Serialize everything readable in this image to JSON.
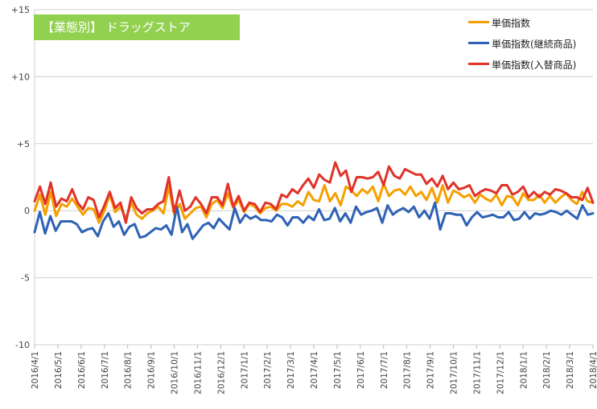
{
  "chart_data": {
    "type": "line",
    "title": "【業態別】 ドラッグストア",
    "ylim": [
      -10,
      15
    ],
    "yticks": [
      15,
      10,
      5,
      0,
      -5,
      -10
    ],
    "ytick_labels": [
      "+15",
      "+10",
      "+5",
      "0",
      "-5",
      "-10"
    ],
    "grid": true,
    "legend_position": "top-right",
    "xticks": [
      "2016/4/1",
      "2016/5/1",
      "2016/6/1",
      "2016/7/1",
      "2016/8/1",
      "2016/9/1",
      "2016/10/1",
      "2016/11/1",
      "2016/12/1",
      "2017/1/1",
      "2017/2/1",
      "2017/3/1",
      "2017/4/1",
      "2017/5/1",
      "2017/6/1",
      "2017/7/1",
      "2017/8/1",
      "2017/9/1",
      "2017/10/1",
      "2017/11/1",
      "2017/12/1",
      "2018/1/1",
      "2018/2/1",
      "2018/3/1",
      "2018/4/1"
    ],
    "series": [
      {
        "name": "単価指数",
        "color": "#f5a000",
        "values": [
          0.0,
          1.2,
          -0.3,
          1.4,
          -0.4,
          0.5,
          0.3,
          0.9,
          0.3,
          -0.3,
          0.2,
          0.1,
          -0.9,
          0.0,
          1.2,
          -0.1,
          0.3,
          -0.6,
          0.6,
          -0.3,
          -0.6,
          -0.2,
          0.0,
          0.3,
          -0.2,
          1.8,
          -0.3,
          0.5,
          -0.6,
          -0.2,
          0.2,
          0.3,
          -0.5,
          0.5,
          0.8,
          0.2,
          1.3,
          0.2,
          0.8,
          -0.1,
          0.5,
          0.3,
          -0.2,
          0.2,
          0.3,
          0.0,
          0.5,
          0.5,
          0.3,
          0.7,
          0.4,
          1.4,
          0.8,
          0.7,
          1.9,
          0.7,
          1.3,
          0.4,
          1.8,
          1.5,
          1.1,
          1.6,
          1.3,
          1.8,
          0.7,
          2.0,
          1.1,
          1.5,
          1.6,
          1.2,
          1.8,
          1.1,
          1.4,
          0.8,
          1.7,
          0.6,
          1.9,
          0.6,
          1.5,
          1.3,
          1.0,
          1.2,
          0.6,
          1.2,
          0.9,
          0.7,
          1.2,
          0.4,
          1.1,
          1.0,
          0.4,
          1.3,
          0.8,
          0.8,
          1.2,
          0.6,
          1.1,
          0.6,
          1.0,
          1.3,
          0.8,
          0.5,
          1.4,
          0.7,
          0.6
        ]
      },
      {
        "name": "単価指数(継続商品)",
        "color": "#2e62b5",
        "values": [
          -1.6,
          -0.1,
          -1.7,
          -0.4,
          -1.5,
          -0.8,
          -0.8,
          -0.8,
          -1.0,
          -1.6,
          -1.4,
          -1.3,
          -1.9,
          -0.8,
          -0.2,
          -1.2,
          -0.8,
          -1.8,
          -1.2,
          -1.0,
          -2.0,
          -1.9,
          -1.6,
          -1.3,
          -1.4,
          -1.1,
          -1.8,
          0.3,
          -1.6,
          -1.0,
          -2.1,
          -1.6,
          -1.1,
          -0.9,
          -1.3,
          -0.6,
          -1.0,
          -1.4,
          0.2,
          -0.9,
          -0.3,
          -0.6,
          -0.4,
          -0.7,
          -0.7,
          -0.8,
          -0.3,
          -0.5,
          -1.1,
          -0.5,
          -0.5,
          -0.9,
          -0.4,
          -0.7,
          0.1,
          -0.7,
          -0.6,
          0.2,
          -0.8,
          -0.2,
          -0.9,
          0.3,
          -0.3,
          -0.1,
          0.0,
          0.2,
          -0.9,
          0.4,
          -0.3,
          0.0,
          0.2,
          -0.1,
          0.3,
          -0.5,
          0.0,
          -0.6,
          0.6,
          -1.4,
          -0.2,
          -0.2,
          -0.3,
          -0.3,
          -1.1,
          -0.5,
          -0.1,
          -0.5,
          -0.4,
          -0.3,
          -0.5,
          -0.5,
          -0.1,
          -0.7,
          -0.6,
          -0.1,
          -0.6,
          -0.2,
          -0.3,
          -0.2,
          0.0,
          -0.1,
          -0.3,
          0.0,
          -0.3,
          -0.6,
          0.4,
          -0.3,
          -0.2
        ]
      },
      {
        "name": "単価指数(入替商品)",
        "color": "#e0332a",
        "values": [
          0.7,
          1.8,
          0.5,
          2.1,
          0.3,
          0.9,
          0.7,
          1.6,
          0.6,
          0.1,
          1.0,
          0.8,
          -0.5,
          0.4,
          1.4,
          0.2,
          0.6,
          -0.9,
          1.0,
          0.2,
          -0.2,
          0.1,
          0.1,
          0.5,
          0.7,
          2.5,
          -0.1,
          1.5,
          0.0,
          0.3,
          1.0,
          0.5,
          -0.2,
          1.0,
          1.0,
          0.4,
          2.0,
          0.3,
          1.1,
          0.0,
          0.6,
          0.5,
          -0.1,
          0.6,
          0.5,
          0.1,
          1.2,
          1.0,
          1.6,
          1.3,
          1.9,
          2.4,
          1.7,
          2.7,
          2.3,
          2.1,
          3.6,
          2.6,
          3.0,
          1.4,
          2.5,
          2.5,
          2.4,
          2.5,
          2.9,
          1.9,
          3.3,
          2.6,
          2.4,
          3.1,
          2.9,
          2.7,
          2.7,
          2.0,
          2.4,
          1.8,
          2.6,
          1.6,
          2.1,
          1.6,
          1.7,
          1.9,
          1.1,
          1.4,
          1.6,
          1.5,
          1.3,
          1.9,
          1.9,
          1.2,
          1.4,
          1.8,
          1.0,
          1.4,
          1.0,
          1.4,
          1.2,
          1.6,
          1.5,
          1.3,
          1.0,
          1.0,
          0.8,
          1.7,
          0.6
        ]
      }
    ]
  }
}
